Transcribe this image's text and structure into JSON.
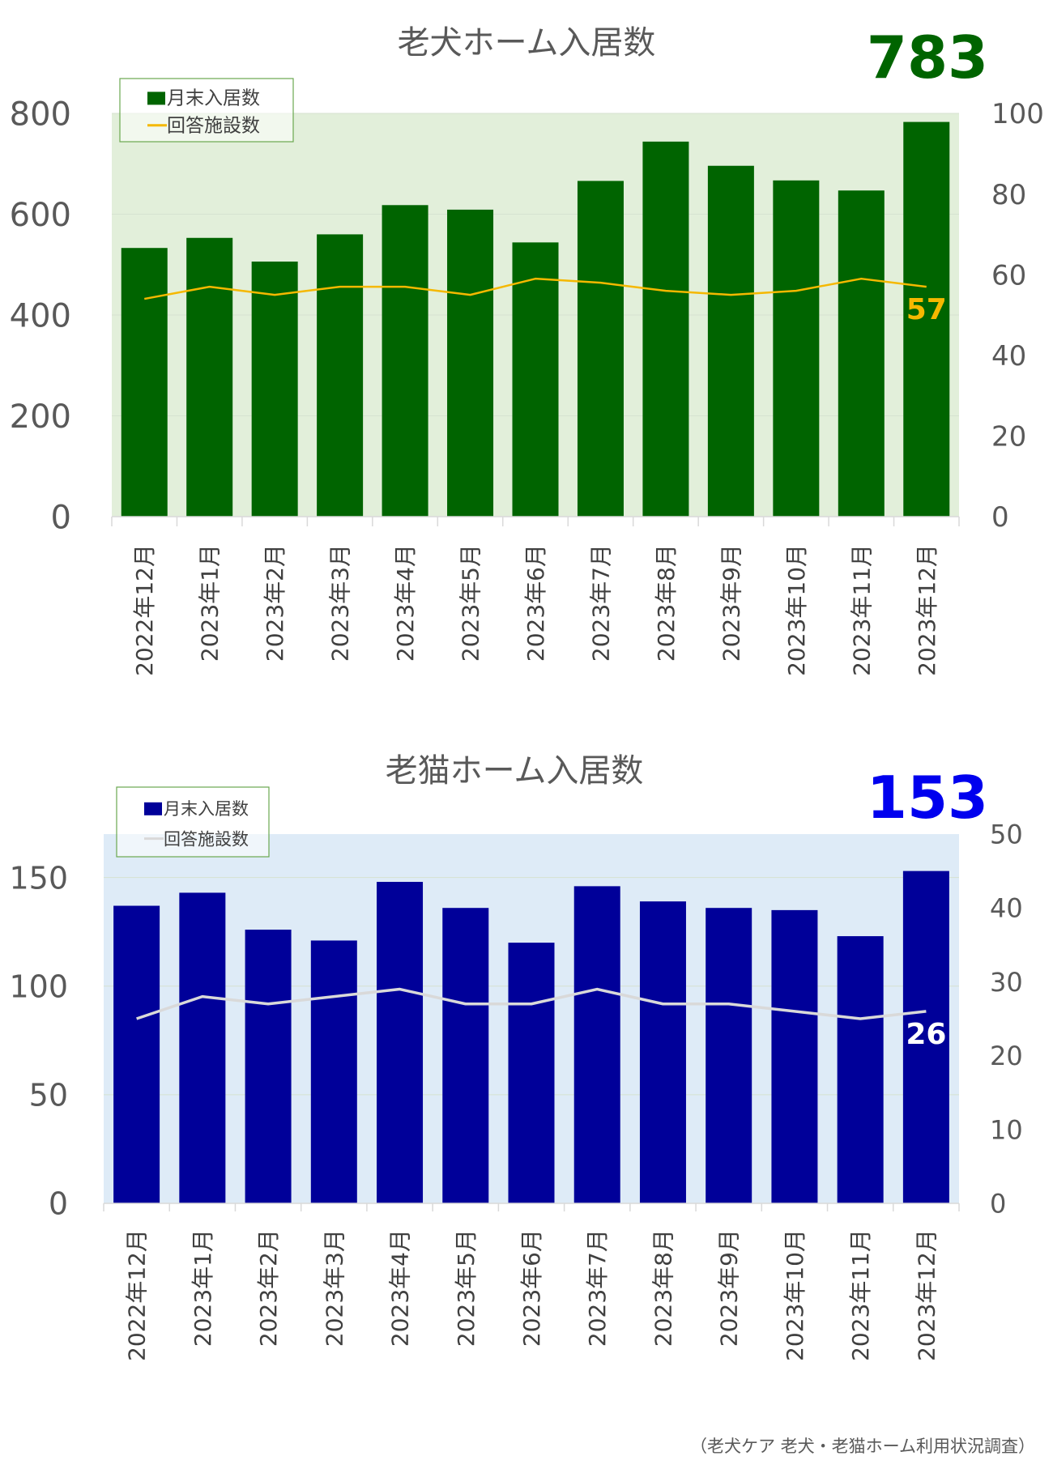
{
  "source_note": "（老犬ケア 老犬・老猫ホーム利用状況調査）",
  "chart_data": [
    {
      "type": "bar",
      "title": "老犬ホーム入居数",
      "headline_value": "783",
      "categories": [
        "2022年12月",
        "2023年1月",
        "2023年2月",
        "2023年3月",
        "2023年4月",
        "2023年5月",
        "2023年6月",
        "2023年7月",
        "2023年8月",
        "2023年9月",
        "2023年10月",
        "2023年11月",
        "2023年12月"
      ],
      "series": [
        {
          "name": "月末入居数",
          "kind": "bar",
          "axis": "left",
          "color": "#006400",
          "values": [
            533,
            553,
            506,
            560,
            618,
            609,
            544,
            666,
            744,
            696,
            667,
            647,
            783
          ]
        },
        {
          "name": "回答施設数",
          "kind": "line",
          "axis": "right",
          "color": "#f5b800",
          "values": [
            54,
            57,
            55,
            57,
            57,
            55,
            59,
            58,
            56,
            55,
            56,
            59,
            57
          ]
        }
      ],
      "last_line_label": "57",
      "ylim_left": [
        0,
        800
      ],
      "yticks_left": [
        "0",
        "200",
        "400",
        "600",
        "800"
      ],
      "ylim_right": [
        0,
        100
      ],
      "yticks_right": [
        "0",
        "20",
        "40",
        "60",
        "80",
        "100"
      ],
      "legend_position": "top-left",
      "plot_background": "#e2efda",
      "headline_color": "#006400",
      "last_label_color": "#f5b800",
      "grid": true
    },
    {
      "type": "bar",
      "title": "老猫ホーム入居数",
      "headline_value": "153",
      "categories": [
        "2022年12月",
        "2023年1月",
        "2023年2月",
        "2023年3月",
        "2023年4月",
        "2023年5月",
        "2023年6月",
        "2023年7月",
        "2023年8月",
        "2023年9月",
        "2023年10月",
        "2023年11月",
        "2023年12月"
      ],
      "series": [
        {
          "name": "月末入居数",
          "kind": "bar",
          "axis": "left",
          "color": "#000099",
          "values": [
            137,
            143,
            126,
            121,
            148,
            136,
            120,
            146,
            139,
            136,
            135,
            123,
            153
          ]
        },
        {
          "name": "回答施設数",
          "kind": "line",
          "axis": "right",
          "color": "#d9d9d9",
          "values": [
            25,
            28,
            27,
            28,
            29,
            27,
            27,
            29,
            27,
            27,
            26,
            25,
            26
          ]
        }
      ],
      "last_line_label": "26",
      "ylim_left": [
        0,
        170
      ],
      "yticks_left": [
        "0",
        "50",
        "100",
        "150"
      ],
      "ylim_right": [
        0,
        50
      ],
      "yticks_right": [
        "0",
        "10",
        "20",
        "30",
        "40",
        "50"
      ],
      "legend_position": "top-left",
      "plot_background": "#deebf7",
      "headline_color": "#0000ee",
      "last_label_color": "#ffffff",
      "grid": true
    }
  ]
}
